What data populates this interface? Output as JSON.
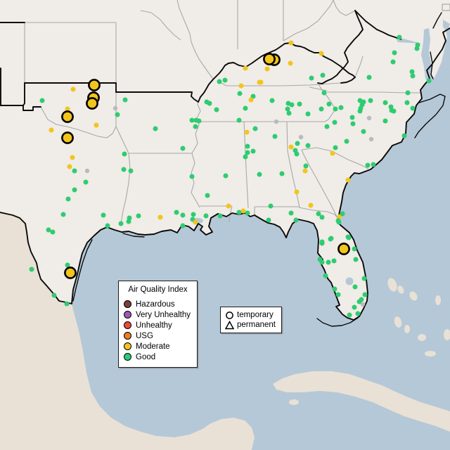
{
  "map": {
    "colors": {
      "water": "#b5c8d7",
      "us_land": "#f0ece7",
      "foreign_land": "#e9e1d6",
      "state_line": "#a9a9a9",
      "highlight_line": "#0a0a0a"
    }
  },
  "legend_aqi": {
    "title": "Air Quality Index",
    "items": [
      {
        "label": "Hazardous",
        "color": "#823c3a"
      },
      {
        "label": "Very Unhealthy",
        "color": "#9d5ab4"
      },
      {
        "label": "Unhealthy",
        "color": "#e94b3c"
      },
      {
        "label": "USG",
        "color": "#ec7e23"
      },
      {
        "label": "Moderate",
        "color": "#f2c51d"
      },
      {
        "label": "Good",
        "color": "#2ecc71"
      }
    ]
  },
  "legend_shape": {
    "items": [
      {
        "label": "temporary",
        "shape": "circle"
      },
      {
        "label": "permanent",
        "shape": "triangle"
      }
    ]
  },
  "chart_data": {
    "type": "scatter",
    "legend_position": "bottom-left",
    "colors": {
      "g": "#2ecc71",
      "m": "#f2c51d",
      "x": "#b7bbbd"
    },
    "point_radius": {
      "small": 3.5,
      "nodata": 3.2,
      "temporary": 7.6
    },
    "points": [
      [
        104,
        127,
        "m"
      ],
      [
        60,
        143,
        "g"
      ],
      [
        96,
        155,
        "m"
      ],
      [
        164,
        154,
        "x"
      ],
      [
        167,
        163,
        "g"
      ],
      [
        178,
        142,
        "g"
      ],
      [
        137,
        178,
        "m"
      ],
      [
        73,
        185,
        "m"
      ],
      [
        221,
        183,
        "g"
      ],
      [
        103,
        224,
        "m"
      ],
      [
        99,
        237,
        "m"
      ],
      [
        106,
        243,
        "g"
      ],
      [
        124,
        243,
        "x"
      ],
      [
        122,
        259,
        "g"
      ],
      [
        106,
        270,
        "g"
      ],
      [
        97,
        283,
        "g"
      ],
      [
        90,
        305,
        "g"
      ],
      [
        147,
        306,
        "g"
      ],
      [
        69,
        327,
        "g"
      ],
      [
        75,
        330,
        "g"
      ],
      [
        45,
        383,
        "g"
      ],
      [
        96,
        377,
        "g"
      ],
      [
        77,
        420,
        "g"
      ],
      [
        95,
        432,
        "g"
      ],
      [
        153,
        321,
        "g"
      ],
      [
        172,
        318,
        "g"
      ],
      [
        184,
        310,
        "g"
      ],
      [
        197,
        307,
        "g"
      ],
      [
        176,
        241,
        "g"
      ],
      [
        186,
        243,
        "g"
      ],
      [
        177,
        219,
        "g"
      ],
      [
        294,
        145,
        "g"
      ],
      [
        298,
        147,
        "g"
      ],
      [
        308,
        156,
        "g"
      ],
      [
        273,
        171,
        "g"
      ],
      [
        279,
        171,
        "g"
      ],
      [
        283,
        172,
        "g"
      ],
      [
        278,
        180,
        "g"
      ],
      [
        260,
        211,
        "g"
      ],
      [
        312,
        116,
        "g"
      ],
      [
        320,
        114,
        "g"
      ],
      [
        273,
        251,
        "g"
      ],
      [
        321,
        250,
        "g"
      ],
      [
        295,
        278,
        "g"
      ],
      [
        325,
        293,
        "m"
      ],
      [
        251,
        302,
        "g"
      ],
      [
        260,
        306,
        "g"
      ],
      [
        228,
        309,
        "m"
      ],
      [
        183,
        315,
        "g"
      ],
      [
        275,
        305,
        "g"
      ],
      [
        274,
        312,
        "g"
      ],
      [
        278,
        316,
        "m"
      ],
      [
        293,
        307,
        "g"
      ],
      [
        313,
        307,
        "g"
      ],
      [
        260,
        321,
        "g"
      ],
      [
        341,
        133,
        "g"
      ],
      [
        360,
        137,
        "g"
      ],
      [
        357,
        142,
        "m"
      ],
      [
        387,
        143,
        "g"
      ],
      [
        343,
        122,
        "m"
      ],
      [
        371,
        117,
        "m"
      ],
      [
        349,
        154,
        "g"
      ],
      [
        340,
        171,
        "g"
      ],
      [
        363,
        183,
        "g"
      ],
      [
        351,
        188,
        "m"
      ],
      [
        352,
        208,
        "g"
      ],
      [
        352,
        217,
        "g"
      ],
      [
        360,
        215,
        "g"
      ],
      [
        349,
        223,
        "g"
      ],
      [
        369,
        248,
        "g"
      ],
      [
        346,
        300,
        "m"
      ],
      [
        352,
        303,
        "g"
      ],
      [
        340,
        302,
        "g"
      ],
      [
        385,
        293,
        "g"
      ],
      [
        382,
        313,
        "g"
      ],
      [
        414,
        303,
        "g"
      ],
      [
        421,
        313,
        "g"
      ],
      [
        422,
        273,
        "m"
      ],
      [
        442,
        292,
        "m"
      ],
      [
        391,
        194,
        "g"
      ],
      [
        393,
        173,
        "x"
      ],
      [
        401,
        247,
        "g"
      ],
      [
        435,
        236,
        "g"
      ],
      [
        434,
        243,
        "m"
      ],
      [
        414,
        209,
        "m"
      ],
      [
        420,
        214,
        "g"
      ],
      [
        422,
        219,
        "g"
      ],
      [
        423,
        204,
        "g"
      ],
      [
        428,
        195,
        "x"
      ],
      [
        438,
        207,
        "g"
      ],
      [
        465,
        180,
        "g"
      ],
      [
        476,
        174,
        "g"
      ],
      [
        477,
        210,
        "g"
      ],
      [
        473,
        218,
        "m"
      ],
      [
        493,
        201,
        "g"
      ],
      [
        495,
        256,
        "m"
      ],
      [
        483,
        308,
        "m"
      ],
      [
        487,
        304,
        "g"
      ],
      [
        481,
        314,
        "g"
      ],
      [
        453,
        304,
        "g"
      ],
      [
        458,
        309,
        "g"
      ],
      [
        482,
        316,
        "g"
      ],
      [
        470,
        340,
        "g"
      ],
      [
        496,
        338,
        "g"
      ],
      [
        458,
        346,
        "g"
      ],
      [
        443,
        111,
        "g"
      ],
      [
        459,
        107,
        "g"
      ],
      [
        461,
        132,
        "g"
      ],
      [
        410,
        147,
        "g"
      ],
      [
        415,
        149,
        "g"
      ],
      [
        426,
        148,
        "g"
      ],
      [
        409,
        155,
        "g"
      ],
      [
        411,
        161,
        "g"
      ],
      [
        438,
        162,
        "g"
      ],
      [
        457,
        155,
        "g"
      ],
      [
        468,
        148,
        "g"
      ],
      [
        477,
        155,
        "g"
      ],
      [
        485,
        153,
        "g"
      ],
      [
        512,
        143,
        "g"
      ],
      [
        517,
        145,
        "g"
      ],
      [
        515,
        149,
        "g"
      ],
      [
        527,
        143,
        "g"
      ],
      [
        548,
        146,
        "g"
      ],
      [
        556,
        152,
        "g"
      ],
      [
        557,
        157,
        "g"
      ],
      [
        513,
        154,
        "g"
      ],
      [
        512,
        158,
        "g"
      ],
      [
        501,
        167,
        "g"
      ],
      [
        502,
        176,
        "g"
      ],
      [
        525,
        168,
        "x"
      ],
      [
        548,
        172,
        "g"
      ],
      [
        560,
        158,
        "g"
      ],
      [
        580,
        132,
        "g"
      ],
      [
        579,
        146,
        "g"
      ],
      [
        587,
        154,
        "g"
      ],
      [
        575,
        193,
        "g"
      ],
      [
        517,
        187,
        "g"
      ],
      [
        528,
        198,
        "x"
      ],
      [
        523,
        235,
        "g"
      ],
      [
        531,
        234,
        "g"
      ],
      [
        610,
        115,
        "g"
      ],
      [
        594,
        64,
        "g"
      ],
      [
        593,
        69,
        "g"
      ],
      [
        568,
        53,
        "g"
      ],
      [
        561,
        75,
        "g"
      ],
      [
        559,
        88,
        "g"
      ],
      [
        586,
        102,
        "g"
      ],
      [
        587,
        108,
        "g"
      ],
      [
        525,
        110,
        "g"
      ],
      [
        414,
        61,
        "m"
      ],
      [
        457,
        76,
        "m"
      ],
      [
        413,
        90,
        "m"
      ],
      [
        380,
        98,
        "m"
      ],
      [
        349,
        97,
        "m"
      ],
      [
        369,
        117,
        "m"
      ],
      [
        458,
        344,
        "g"
      ],
      [
        471,
        339,
        "g"
      ],
      [
        495,
        337,
        "g"
      ],
      [
        504,
        354,
        "g"
      ],
      [
        455,
        369,
        "g"
      ],
      [
        458,
        373,
        "g"
      ],
      [
        467,
        373,
        "g"
      ],
      [
        475,
        371,
        "g"
      ],
      [
        506,
        369,
        "g"
      ],
      [
        463,
        392,
        "g"
      ],
      [
        518,
        396,
        "g"
      ],
      [
        476,
        411,
        "g"
      ],
      [
        505,
        408,
        "g"
      ],
      [
        481,
        419,
        "g"
      ],
      [
        519,
        419,
        "g"
      ],
      [
        514,
        426,
        "g"
      ],
      [
        511,
        429,
        "g"
      ],
      [
        516,
        433,
        "x"
      ],
      [
        504,
        437,
        "g"
      ],
      [
        509,
        446,
        "g"
      ],
      [
        497,
        448,
        "g"
      ]
    ],
    "temporary_points": [
      [
        390,
        85,
        "m"
      ],
      [
        383,
        84,
        "m"
      ],
      [
        134,
        121,
        "m"
      ],
      [
        133,
        139,
        "m"
      ],
      [
        131,
        147,
        "m"
      ],
      [
        96,
        166,
        "m"
      ],
      [
        96,
        196,
        "m"
      ],
      [
        100,
        388,
        "m"
      ],
      [
        489,
        354,
        "m"
      ]
    ]
  }
}
